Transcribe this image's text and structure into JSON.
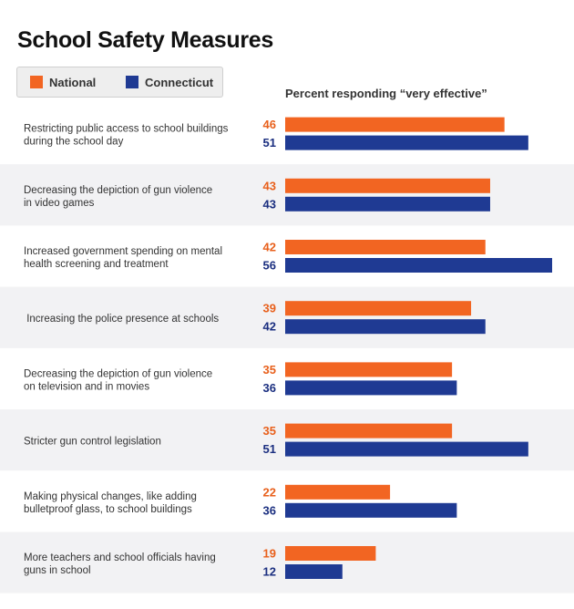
{
  "title": "School Safety Measures",
  "axis_caption": "Percent responding “very effective”",
  "legend": [
    {
      "label": "National",
      "color": "#f26522"
    },
    {
      "label": "Connecticut",
      "color": "#1f3a93"
    }
  ],
  "colors": {
    "national": "#f26522",
    "connecticut": "#1f3a93",
    "national_text": "#e8601c",
    "connecticut_text": "#1b2f80",
    "band": "#f2f2f4"
  },
  "chart_data": {
    "type": "bar",
    "orientation": "horizontal",
    "xlim": [
      0,
      60
    ],
    "legend_position": "top-left",
    "categories": [
      [
        "Restricting public access to school buildings",
        "during the school day"
      ],
      [
        "Decreasing the depiction of gun violence",
        "in video games"
      ],
      [
        "Increased government spending on mental",
        "health screening and treatment"
      ],
      [
        " Increasing the police presence at schools"
      ],
      [
        "Decreasing the depiction of gun violence",
        "on television and in movies"
      ],
      [
        "Stricter gun control legislation"
      ],
      [
        "Making physical changes, like adding",
        "bulletproof glass, to school buildings"
      ],
      [
        "More teachers and school officials having",
        "guns in school"
      ]
    ],
    "series": [
      {
        "name": "National",
        "values": [
          46,
          43,
          42,
          39,
          35,
          35,
          22,
          19
        ]
      },
      {
        "name": "Connecticut",
        "values": [
          51,
          43,
          56,
          42,
          36,
          51,
          36,
          12
        ]
      }
    ]
  }
}
